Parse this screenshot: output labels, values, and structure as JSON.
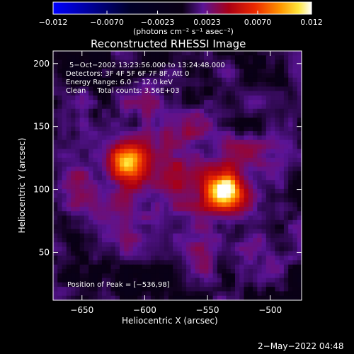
{
  "chart_data": {
    "type": "heatmap",
    "title": "Reconstructed RHESSI Image",
    "xlabel": "Heliocentric X (arcsec)",
    "ylabel": "Heliocentric Y (arcsec)",
    "xlim": [
      -673,
      -475
    ],
    "ylim": [
      12,
      210
    ],
    "x_ticks": [
      -650,
      -600,
      -550,
      -500
    ],
    "y_ticks": [
      50,
      100,
      150,
      200
    ],
    "x_tick_labels": [
      "−650",
      "−600",
      "−550",
      "−500"
    ],
    "y_tick_labels": [
      "50",
      "100",
      "150",
      "200"
    ],
    "colorbar": {
      "range": [
        -0.012,
        0.012
      ],
      "ticks": [
        -0.012,
        -0.007,
        -0.0023,
        0.0023,
        0.007,
        0.012
      ],
      "tick_labels": [
        "−0.012",
        "−0.0070",
        "−0.0023",
        "0.0023",
        "0.0070",
        "0.012"
      ],
      "unit_label": "(photons cm⁻² s⁻¹ asec⁻²)"
    },
    "annotations": [
      "5−Oct−2002 13:23:56.000 to 13:24:48.000",
      "Detectors: 3F 4F 5F 6F 7F 8F, Att 0",
      "Energy Range: 6.0 − 12.0 keV",
      "Clean     Total counts: 3.56E+03"
    ],
    "peak_label": "Position of Peak = [−536,98]",
    "sources": [
      {
        "x": -536,
        "y": 98,
        "value": 0.012
      },
      {
        "x": -614,
        "y": 120,
        "value": 0.0085
      }
    ]
  },
  "footer_date": "2−May−2022 04:48"
}
